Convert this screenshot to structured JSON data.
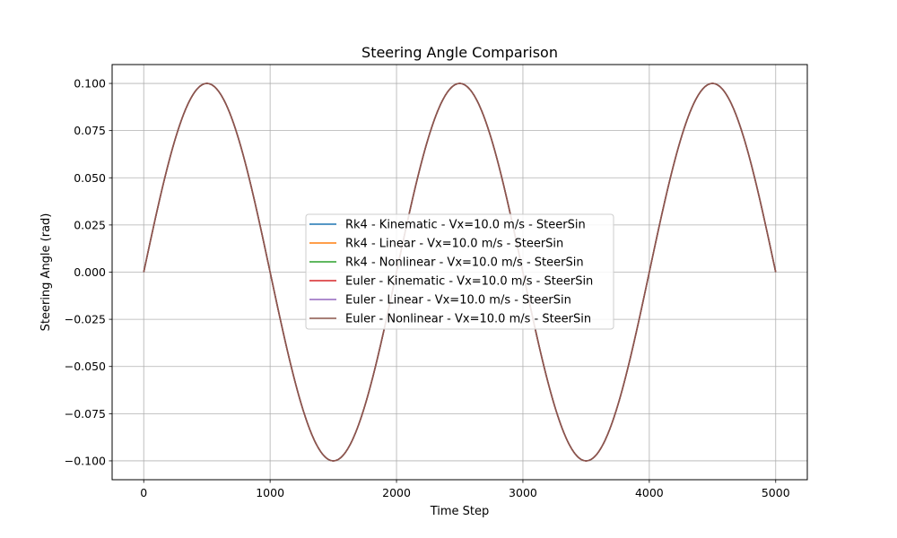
{
  "chart_data": {
    "type": "line",
    "title": "Steering Angle Comparison",
    "xlabel": "Time Step",
    "ylabel": "Steering Angle (rad)",
    "xlim": [
      -250,
      5250
    ],
    "ylim": [
      -0.11,
      0.11
    ],
    "x_ticks": [
      0,
      1000,
      2000,
      3000,
      4000,
      5000
    ],
    "x_tick_labels": [
      "0",
      "1000",
      "2000",
      "3000",
      "4000",
      "5000"
    ],
    "y_ticks": [
      0.1,
      0.075,
      0.05,
      0.025,
      0.0,
      -0.025,
      -0.05,
      -0.075,
      -0.1
    ],
    "y_tick_labels": [
      "0.100",
      "0.075",
      "0.050",
      "0.025",
      "0.000",
      "−0.025",
      "−0.050",
      "−0.075",
      "−0.100"
    ],
    "grid": true,
    "legend_position": "center",
    "x": [
      0,
      125,
      250,
      375,
      500,
      625,
      750,
      875,
      1000,
      1125,
      1250,
      1375,
      1500,
      1625,
      1750,
      1875,
      2000,
      2125,
      2250,
      2375,
      2500,
      2625,
      2750,
      2875,
      3000,
      3125,
      3250,
      3375,
      3500,
      3625,
      3750,
      3875,
      4000,
      4125,
      4250,
      4375,
      4500,
      4625,
      4750,
      4875,
      5000
    ],
    "series": [
      {
        "name": "Rk4 - Kinematic - Vx=10.0 m/s - SteerSin",
        "color": "#1f77b4",
        "values": [
          0,
          0.0383,
          0.0707,
          0.0924,
          0.1,
          0.0924,
          0.0707,
          0.0383,
          0,
          -0.0383,
          -0.0707,
          -0.0924,
          -0.1,
          -0.0924,
          -0.0707,
          -0.0383,
          0,
          0.0383,
          0.0707,
          0.0924,
          0.1,
          0.0924,
          0.0707,
          0.0383,
          0,
          -0.0383,
          -0.0707,
          -0.0924,
          -0.1,
          -0.0924,
          -0.0707,
          -0.0383,
          0,
          0.0383,
          0.0707,
          0.0924,
          0.1,
          0.0924,
          0.0707,
          0.0383,
          0
        ]
      },
      {
        "name": "Rk4 - Linear - Vx=10.0 m/s - SteerSin",
        "color": "#ff7f0e",
        "values": [
          0,
          0.0383,
          0.0707,
          0.0924,
          0.1,
          0.0924,
          0.0707,
          0.0383,
          0,
          -0.0383,
          -0.0707,
          -0.0924,
          -0.1,
          -0.0924,
          -0.0707,
          -0.0383,
          0,
          0.0383,
          0.0707,
          0.0924,
          0.1,
          0.0924,
          0.0707,
          0.0383,
          0,
          -0.0383,
          -0.0707,
          -0.0924,
          -0.1,
          -0.0924,
          -0.0707,
          -0.0383,
          0,
          0.0383,
          0.0707,
          0.0924,
          0.1,
          0.0924,
          0.0707,
          0.0383,
          0
        ]
      },
      {
        "name": "Rk4 - Nonlinear - Vx=10.0 m/s - SteerSin",
        "color": "#2ca02c",
        "values": [
          0,
          0.0383,
          0.0707,
          0.0924,
          0.1,
          0.0924,
          0.0707,
          0.0383,
          0,
          -0.0383,
          -0.0707,
          -0.0924,
          -0.1,
          -0.0924,
          -0.0707,
          -0.0383,
          0,
          0.0383,
          0.0707,
          0.0924,
          0.1,
          0.0924,
          0.0707,
          0.0383,
          0,
          -0.0383,
          -0.0707,
          -0.0924,
          -0.1,
          -0.0924,
          -0.0707,
          -0.0383,
          0,
          0.0383,
          0.0707,
          0.0924,
          0.1,
          0.0924,
          0.0707,
          0.0383,
          0
        ]
      },
      {
        "name": "Euler - Kinematic - Vx=10.0 m/s - SteerSin",
        "color": "#d62728",
        "values": [
          0,
          0.0383,
          0.0707,
          0.0924,
          0.1,
          0.0924,
          0.0707,
          0.0383,
          0,
          -0.0383,
          -0.0707,
          -0.0924,
          -0.1,
          -0.0924,
          -0.0707,
          -0.0383,
          0,
          0.0383,
          0.0707,
          0.0924,
          0.1,
          0.0924,
          0.0707,
          0.0383,
          0,
          -0.0383,
          -0.0707,
          -0.0924,
          -0.1,
          -0.0924,
          -0.0707,
          -0.0383,
          0,
          0.0383,
          0.0707,
          0.0924,
          0.1,
          0.0924,
          0.0707,
          0.0383,
          0
        ]
      },
      {
        "name": "Euler - Linear - Vx=10.0 m/s - SteerSin",
        "color": "#9467bd",
        "values": [
          0,
          0.0383,
          0.0707,
          0.0924,
          0.1,
          0.0924,
          0.0707,
          0.0383,
          0,
          -0.0383,
          -0.0707,
          -0.0924,
          -0.1,
          -0.0924,
          -0.0707,
          -0.0383,
          0,
          0.0383,
          0.0707,
          0.0924,
          0.1,
          0.0924,
          0.0707,
          0.0383,
          0,
          -0.0383,
          -0.0707,
          -0.0924,
          -0.1,
          -0.0924,
          -0.0707,
          -0.0383,
          0,
          0.0383,
          0.0707,
          0.0924,
          0.1,
          0.0924,
          0.0707,
          0.0383,
          0
        ]
      },
      {
        "name": "Euler - Nonlinear - Vx=10.0 m/s - SteerSin",
        "color": "#8c564b",
        "values": [
          0,
          0.0383,
          0.0707,
          0.0924,
          0.1,
          0.0924,
          0.0707,
          0.0383,
          0,
          -0.0383,
          -0.0707,
          -0.0924,
          -0.1,
          -0.0924,
          -0.0707,
          -0.0383,
          0,
          0.0383,
          0.0707,
          0.0924,
          0.1,
          0.0924,
          0.0707,
          0.0383,
          0,
          -0.0383,
          -0.0707,
          -0.0924,
          -0.1,
          -0.0924,
          -0.0707,
          -0.0383,
          0,
          0.0383,
          0.0707,
          0.0924,
          0.1,
          0.0924,
          0.0707,
          0.0383,
          0
        ]
      }
    ]
  }
}
